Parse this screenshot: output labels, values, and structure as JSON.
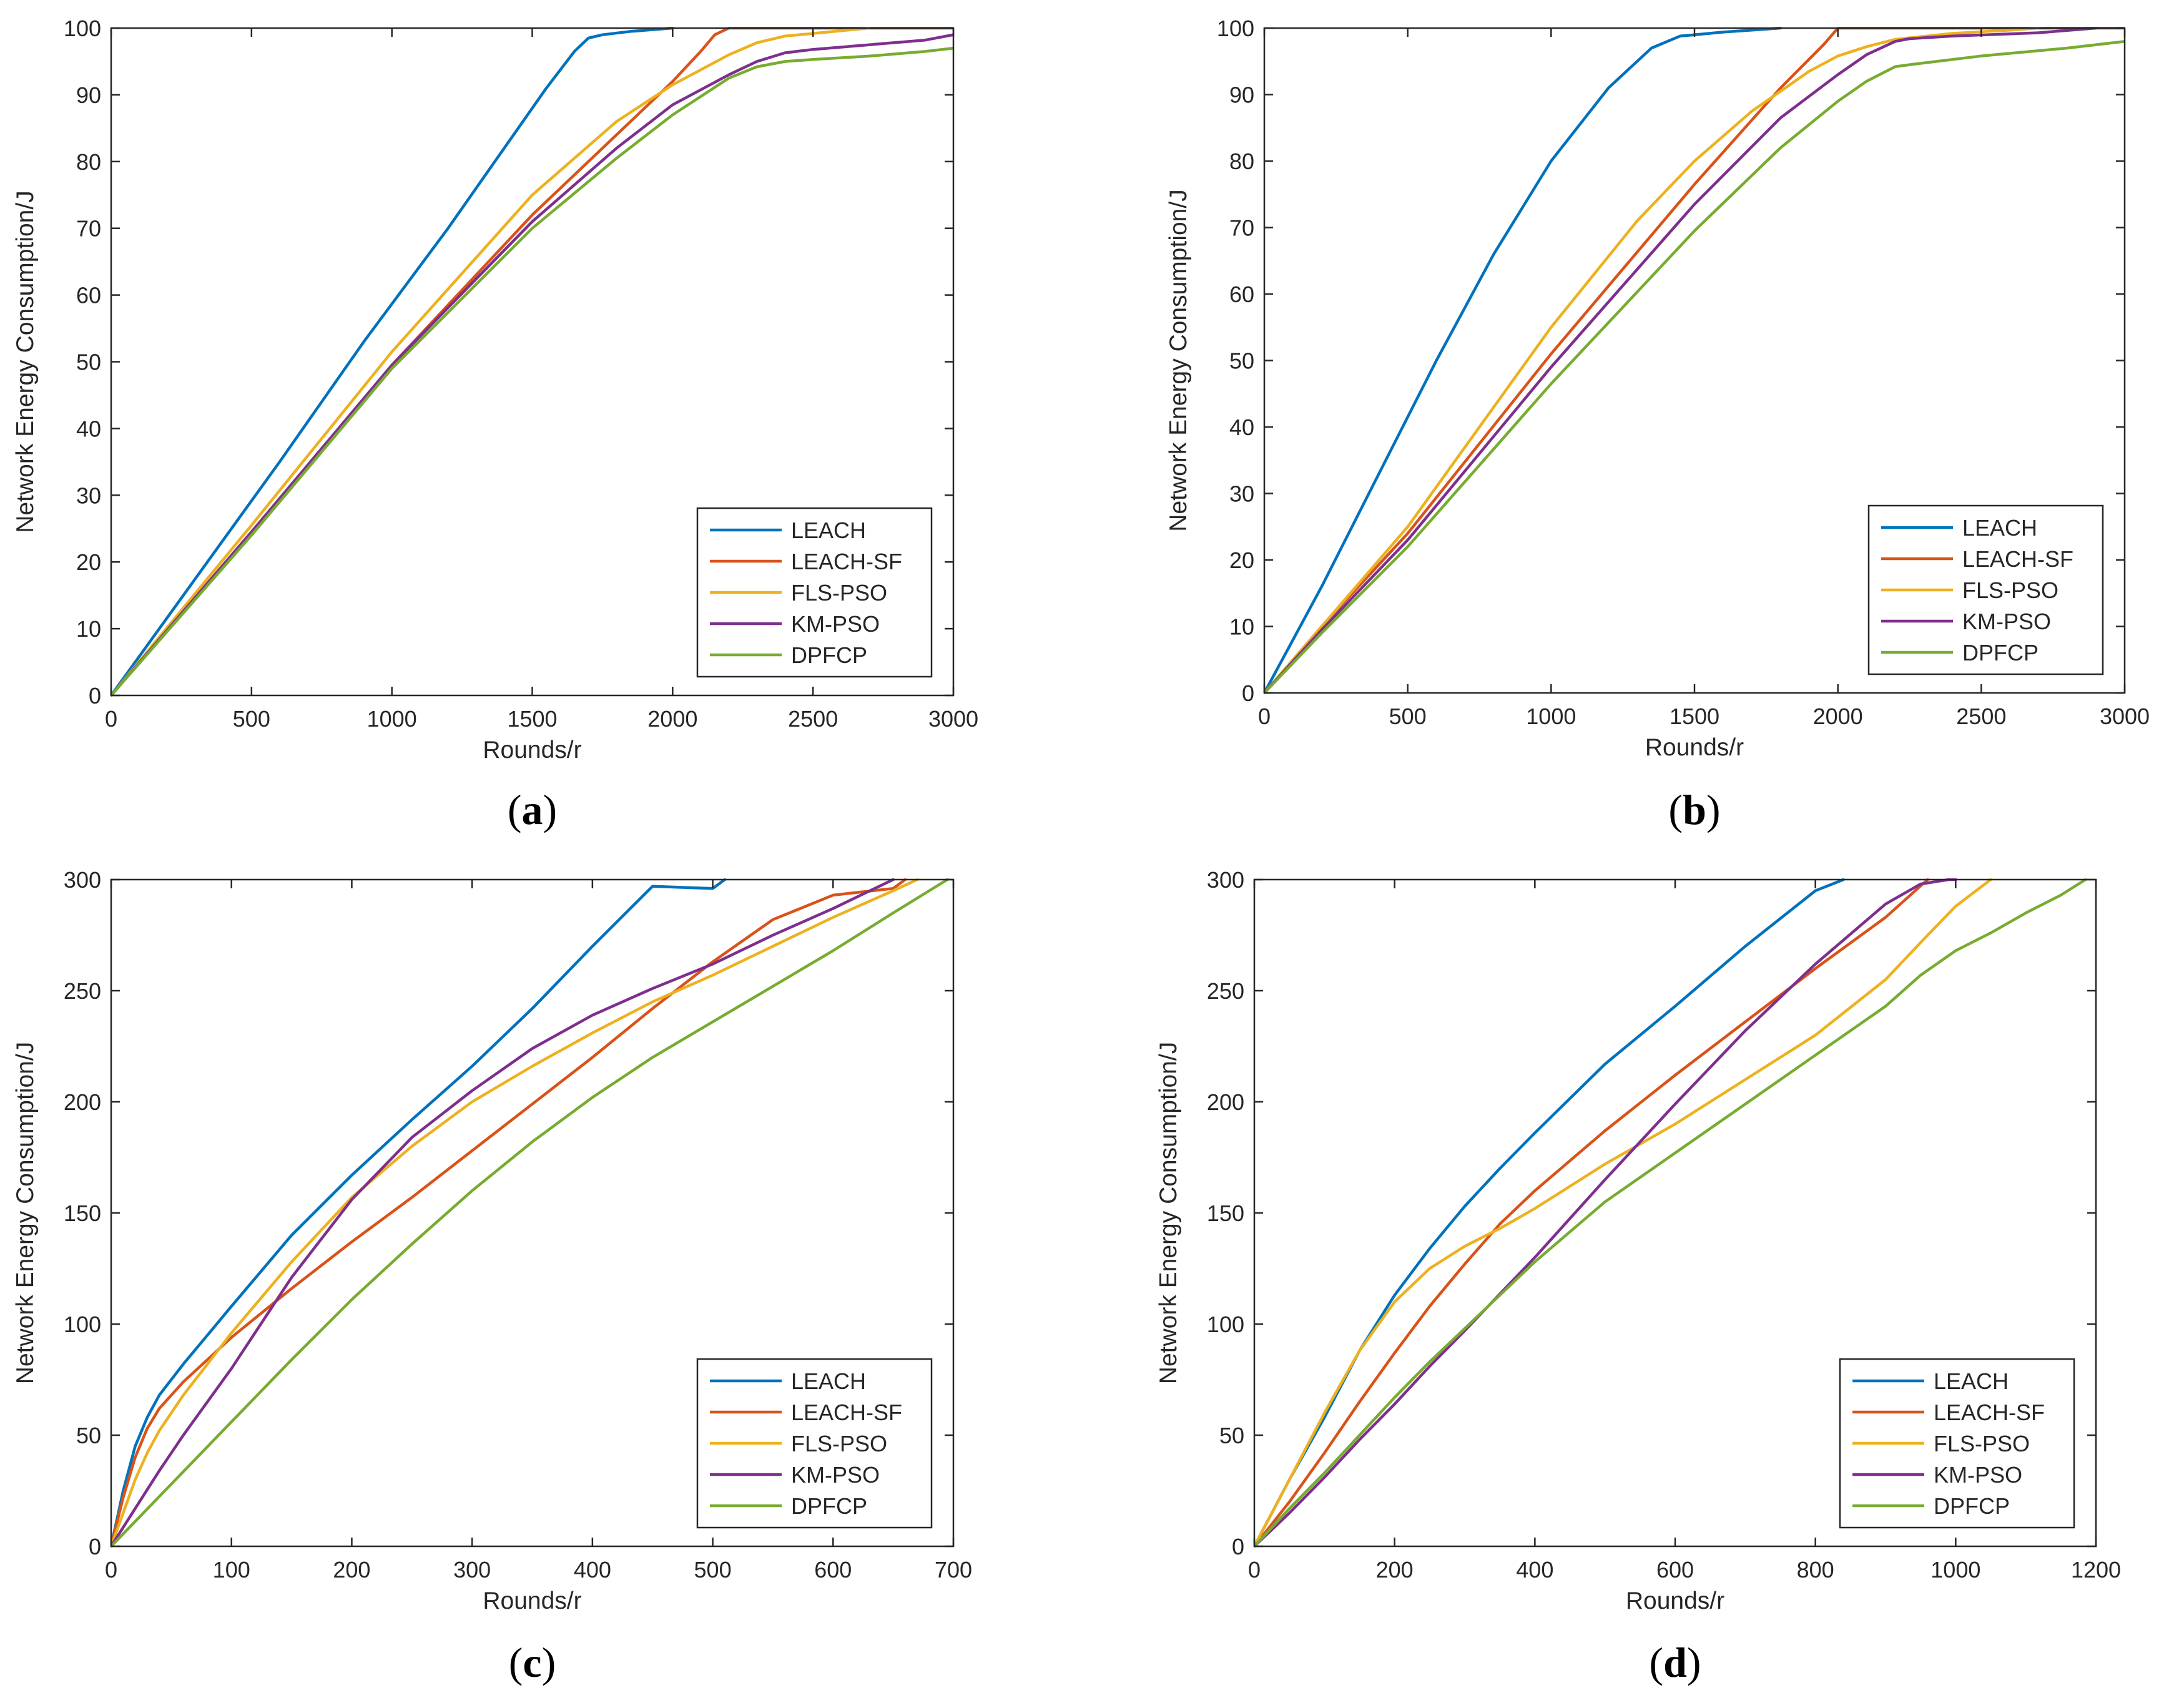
{
  "colors": {
    "LEACH": "#0072BD",
    "LEACH-SF": "#D95319",
    "FLS-PSO": "#EDB120",
    "KM-PSO": "#7E2F8E",
    "DPFCP": "#77AC30",
    "axis": "#262626"
  },
  "chart_data": [
    {
      "id": "a",
      "type": "line",
      "caption": {
        "open": "(",
        "letter": "a",
        "close": ")"
      },
      "xlabel": "Rounds/r",
      "ylabel": "Network Energy Consumption/J",
      "xlim": [
        0,
        3000
      ],
      "ylim": [
        0,
        100
      ],
      "xticks": [
        0,
        500,
        1000,
        1500,
        2000,
        2500,
        3000
      ],
      "yticks": [
        0,
        10,
        20,
        30,
        40,
        50,
        60,
        70,
        80,
        90,
        100
      ],
      "xtick_labels": [
        "0",
        "500",
        "1000",
        "1500",
        "2000",
        "2500",
        "3000"
      ],
      "ytick_labels": [
        "0",
        "10",
        "20",
        "30",
        "40",
        "50",
        "60",
        "70",
        "80",
        "90",
        "100"
      ],
      "legend": [
        "LEACH",
        "LEACH-SF",
        "FLS-PSO",
        "KM-PSO",
        "DPFCP"
      ],
      "legend_location": "bottom-right",
      "series": [
        {
          "name": "LEACH",
          "x": [
            0,
            300,
            600,
            900,
            1200,
            1400,
            1550,
            1650,
            1700,
            1750,
            1850,
            2000
          ],
          "y": [
            0,
            17.5,
            35,
            53,
            70,
            82,
            91,
            96.5,
            98.5,
            99,
            99.5,
            100
          ]
        },
        {
          "name": "LEACH-SF",
          "x": [
            0,
            500,
            1000,
            1500,
            1800,
            2000,
            2100,
            2150,
            2200,
            2250,
            3000
          ],
          "y": [
            0,
            24.5,
            49.5,
            72,
            84,
            92,
            96.5,
            99,
            100,
            100,
            100
          ]
        },
        {
          "name": "FLS-PSO",
          "x": [
            0,
            500,
            1000,
            1500,
            1800,
            2000,
            2200,
            2300,
            2400,
            2500,
            2600,
            2700
          ],
          "y": [
            0,
            25.5,
            51.5,
            75,
            86,
            91.5,
            96,
            97.8,
            98.8,
            99.2,
            99.6,
            100
          ]
        },
        {
          "name": "KM-PSO",
          "x": [
            0,
            500,
            1000,
            1500,
            1800,
            2000,
            2200,
            2300,
            2400,
            2500,
            2700,
            2900,
            3000
          ],
          "y": [
            0,
            24.5,
            49.5,
            71,
            82,
            88.5,
            93,
            95,
            96.3,
            96.8,
            97.5,
            98.2,
            99
          ]
        },
        {
          "name": "DPFCP",
          "x": [
            0,
            500,
            1000,
            1500,
            1800,
            2000,
            2200,
            2300,
            2400,
            2500,
            2700,
            2900,
            3000
          ],
          "y": [
            0,
            24,
            49,
            70,
            80.5,
            87,
            92.5,
            94.2,
            95,
            95.3,
            95.8,
            96.5,
            97
          ]
        }
      ]
    },
    {
      "id": "b",
      "type": "line",
      "caption": {
        "open": "(",
        "letter": "b",
        "close": ")"
      },
      "xlabel": "Rounds/r",
      "ylabel": "Network Energy Consumption/J",
      "xlim": [
        0,
        3000
      ],
      "ylim": [
        0,
        100
      ],
      "xticks": [
        0,
        500,
        1000,
        1500,
        2000,
        2500,
        3000
      ],
      "yticks": [
        0,
        10,
        20,
        30,
        40,
        50,
        60,
        70,
        80,
        90,
        100
      ],
      "xtick_labels": [
        "0",
        "500",
        "1000",
        "1500",
        "2000",
        "2500",
        "3000"
      ],
      "ytick_labels": [
        "0",
        "10",
        "20",
        "30",
        "40",
        "50",
        "60",
        "70",
        "80",
        "90",
        "100"
      ],
      "legend": [
        "LEACH",
        "LEACH-SF",
        "FLS-PSO",
        "KM-PSO",
        "DPFCP"
      ],
      "legend_location": "bottom-right",
      "series": [
        {
          "name": "LEACH",
          "x": [
            0,
            200,
            400,
            600,
            800,
            1000,
            1200,
            1350,
            1450,
            1500,
            1600,
            1700,
            1800
          ],
          "y": [
            0,
            16,
            33,
            50,
            66,
            80,
            91,
            97,
            98.8,
            99,
            99.4,
            99.7,
            100
          ]
        },
        {
          "name": "LEACH-SF",
          "x": [
            0,
            200,
            500,
            1000,
            1500,
            1800,
            1950,
            2000,
            2050,
            3000
          ],
          "y": [
            0,
            10,
            24,
            51,
            76.5,
            91,
            97.5,
            100,
            100,
            100
          ]
        },
        {
          "name": "FLS-PSO",
          "x": [
            0,
            200,
            500,
            1000,
            1300,
            1500,
            1700,
            1900,
            2000,
            2100,
            2200,
            2400,
            2600,
            2700
          ],
          "y": [
            0,
            10,
            25,
            55,
            71,
            80,
            87.5,
            93.5,
            95.8,
            97.2,
            98.3,
            99.2,
            99.7,
            100
          ]
        },
        {
          "name": "KM-PSO",
          "x": [
            0,
            200,
            500,
            1000,
            1500,
            1800,
            2000,
            2100,
            2200,
            2250,
            2400,
            2700,
            2900
          ],
          "y": [
            0,
            9.5,
            23,
            49,
            73.5,
            86.5,
            93,
            96,
            98,
            98.4,
            98.8,
            99.3,
            100
          ]
        },
        {
          "name": "DPFCP",
          "x": [
            0,
            200,
            500,
            1000,
            1500,
            1800,
            2000,
            2100,
            2200,
            2250,
            2500,
            2800,
            3000
          ],
          "y": [
            0,
            9,
            22,
            46.5,
            69.5,
            82,
            89,
            92,
            94.2,
            94.5,
            95.8,
            97,
            98
          ]
        }
      ]
    },
    {
      "id": "c",
      "type": "line",
      "caption": {
        "open": "(",
        "letter": "c",
        "close": ")"
      },
      "xlabel": "Rounds/r",
      "ylabel": "Network Energy Consumption/J",
      "xlim": [
        0,
        700
      ],
      "ylim": [
        0,
        300
      ],
      "xticks": [
        0,
        100,
        200,
        300,
        400,
        500,
        600,
        700
      ],
      "yticks": [
        0,
        50,
        100,
        150,
        200,
        250,
        300
      ],
      "xtick_labels": [
        "0",
        "100",
        "200",
        "300",
        "400",
        "500",
        "600",
        "700"
      ],
      "ytick_labels": [
        "0",
        "50",
        "100",
        "150",
        "200",
        "250",
        "300"
      ],
      "legend": [
        "LEACH",
        "LEACH-SF",
        "FLS-PSO",
        "KM-PSO",
        "DPFCP"
      ],
      "legend_location": "bottom-right",
      "series": [
        {
          "name": "LEACH",
          "x": [
            0,
            10,
            20,
            30,
            40,
            60,
            80,
            100,
            150,
            200,
            250,
            300,
            350,
            400,
            450,
            500,
            510
          ],
          "y": [
            0,
            25,
            45,
            58,
            68,
            82,
            95,
            108,
            140,
            167,
            192,
            216,
            242,
            270,
            297,
            296,
            300
          ]
        },
        {
          "name": "LEACH-SF",
          "x": [
            0,
            10,
            20,
            30,
            40,
            60,
            80,
            100,
            150,
            200,
            250,
            300,
            350,
            400,
            450,
            500,
            550,
            600,
            650,
            660
          ],
          "y": [
            0,
            22,
            40,
            53,
            62,
            74,
            84,
            94,
            116,
            137,
            157,
            178,
            199,
            220,
            242,
            263,
            282,
            293,
            296,
            300
          ]
        },
        {
          "name": "FLS-PSO",
          "x": [
            0,
            10,
            20,
            30,
            40,
            60,
            80,
            100,
            150,
            200,
            250,
            300,
            350,
            400,
            450,
            500,
            550,
            600,
            650,
            670
          ],
          "y": [
            0,
            15,
            30,
            42,
            52,
            68,
            82,
            96,
            128,
            157,
            180,
            200,
            216,
            231,
            245,
            257,
            270,
            283,
            295,
            300
          ]
        },
        {
          "name": "KM-PSO",
          "x": [
            0,
            20,
            40,
            60,
            80,
            100,
            150,
            200,
            250,
            300,
            350,
            400,
            450,
            500,
            550,
            600,
            650
          ],
          "y": [
            0,
            17,
            34,
            50,
            65,
            80,
            121,
            156,
            184,
            205,
            224,
            239,
            251,
            262,
            275,
            287,
            300
          ]
        },
        {
          "name": "DPFCP",
          "x": [
            0,
            50,
            100,
            150,
            200,
            250,
            300,
            350,
            400,
            450,
            500,
            550,
            600,
            650,
            695
          ],
          "y": [
            0,
            28,
            56,
            84,
            111,
            136,
            160,
            182,
            202,
            220,
            236,
            252,
            268,
            285,
            300
          ]
        }
      ]
    },
    {
      "id": "d",
      "type": "line",
      "caption": {
        "open": "(",
        "letter": "d",
        "close": ")"
      },
      "xlabel": "Rounds/r",
      "ylabel": "Network Energy Consumption/J",
      "xlim": [
        0,
        1200
      ],
      "ylim": [
        0,
        300
      ],
      "xticks": [
        0,
        200,
        400,
        600,
        800,
        1000,
        1200
      ],
      "yticks": [
        0,
        50,
        100,
        150,
        200,
        250,
        300
      ],
      "xtick_labels": [
        "0",
        "200",
        "400",
        "600",
        "800",
        "1000",
        "1200"
      ],
      "ytick_labels": [
        "0",
        "50",
        "100",
        "150",
        "200",
        "250",
        "300"
      ],
      "legend": [
        "LEACH",
        "LEACH-SF",
        "FLS-PSO",
        "KM-PSO",
        "DPFCP"
      ],
      "legend_location": "bottom-right",
      "series": [
        {
          "name": "LEACH",
          "x": [
            0,
            50,
            100,
            150,
            200,
            250,
            300,
            350,
            400,
            500,
            600,
            700,
            800,
            840
          ],
          "y": [
            0,
            30,
            58,
            88,
            113,
            134,
            153,
            170,
            186,
            217,
            243,
            270,
            295,
            300
          ]
        },
        {
          "name": "LEACH-SF",
          "x": [
            0,
            50,
            100,
            150,
            200,
            250,
            300,
            350,
            400,
            500,
            600,
            700,
            800,
            900,
            960
          ],
          "y": [
            0,
            20,
            42,
            65,
            87,
            108,
            127,
            145,
            160,
            187,
            212,
            236,
            260,
            283,
            300
          ]
        },
        {
          "name": "FLS-PSO",
          "x": [
            0,
            50,
            100,
            150,
            200,
            250,
            300,
            350,
            400,
            500,
            600,
            700,
            800,
            900,
            960,
            1000,
            1050
          ],
          "y": [
            0,
            30,
            60,
            88,
            110,
            125,
            135,
            143,
            152,
            172,
            190,
            210,
            230,
            255,
            275,
            288,
            300
          ]
        },
        {
          "name": "KM-PSO",
          "x": [
            0,
            50,
            100,
            150,
            200,
            250,
            300,
            400,
            500,
            600,
            700,
            800,
            900,
            950,
            990,
            1000
          ],
          "y": [
            0,
            15,
            31,
            48,
            64,
            81,
            97,
            130,
            165,
            199,
            232,
            262,
            289,
            298,
            300,
            300
          ]
        },
        {
          "name": "DPFCP",
          "x": [
            0,
            50,
            100,
            150,
            200,
            250,
            300,
            400,
            500,
            600,
            700,
            800,
            900,
            950,
            1000,
            1050,
            1100,
            1150,
            1185
          ],
          "y": [
            0,
            17,
            33,
            50,
            67,
            83,
            98,
            128,
            155,
            177,
            199,
            221,
            243,
            257,
            268,
            276,
            285,
            293,
            300
          ]
        }
      ]
    }
  ]
}
